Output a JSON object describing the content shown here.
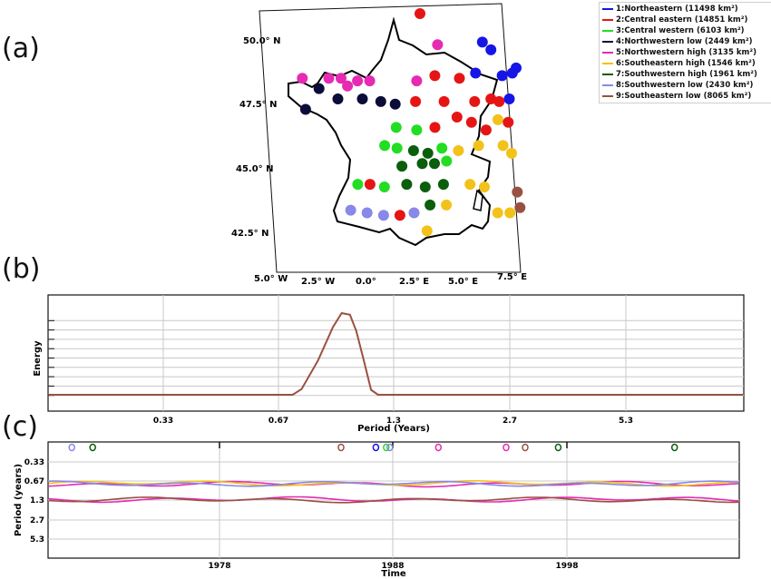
{
  "panels": {
    "a": "(a)",
    "b": "(b)",
    "c": "(c)"
  },
  "legend": [
    {
      "label": "1:Northeastern (11498 km²)",
      "color": "#1515e6"
    },
    {
      "label": "2:Central eastern (14851 km²)",
      "color": "#e61515"
    },
    {
      "label": "3:Central western (6103 km²)",
      "color": "#22dd22"
    },
    {
      "label": "4:Northwestern low (2449 km²)",
      "color": "#0c0c3a"
    },
    {
      "label": "5:Northwestern high (3135 km²)",
      "color": "#e62ab4"
    },
    {
      "label": "6:Southeastern high (1546 km²)",
      "color": "#f2c21a"
    },
    {
      "label": "7:Southwestern high (1961 km²)",
      "color": "#0b5e0b"
    },
    {
      "label": "8:Southwestern low (2430 km²)",
      "color": "#8888e8"
    },
    {
      "label": "9:Southeastern low (8065 km²)",
      "color": "#9a5040"
    }
  ],
  "chart_data": [
    {
      "type": "scatter",
      "panel": "a",
      "description_kind": "map",
      "lat_ticks": [
        "50.0° N",
        "47.5° N",
        "45.0° N",
        "42.5° N"
      ],
      "lon_ticks": [
        "5.0° W",
        "2.5° W",
        "0.0°",
        "2.5° E",
        "5.0° E",
        "7.5° E"
      ],
      "points": [
        {
          "lon": 2.4,
          "lat": 51.0,
          "region": 2
        },
        {
          "lon": 3.2,
          "lat": 49.8,
          "region": 5
        },
        {
          "lon": 5.4,
          "lat": 49.9,
          "region": 1
        },
        {
          "lon": 5.8,
          "lat": 49.6,
          "region": 1
        },
        {
          "lon": 7.0,
          "lat": 48.9,
          "region": 1
        },
        {
          "lon": 6.3,
          "lat": 48.6,
          "region": 1
        },
        {
          "lon": 6.8,
          "lat": 48.7,
          "region": 1
        },
        {
          "lon": 5.0,
          "lat": 48.7,
          "region": 1
        },
        {
          "lon": 4.2,
          "lat": 48.5,
          "region": 2
        },
        {
          "lon": 3.0,
          "lat": 48.6,
          "region": 2
        },
        {
          "lon": 2.1,
          "lat": 48.4,
          "region": 5
        },
        {
          "lon": -3.5,
          "lat": 48.5,
          "region": 5
        },
        {
          "lon": -2.2,
          "lat": 48.5,
          "region": 5
        },
        {
          "lon": -1.6,
          "lat": 48.5,
          "region": 5
        },
        {
          "lon": -0.8,
          "lat": 48.4,
          "region": 5
        },
        {
          "lon": -0.2,
          "lat": 48.4,
          "region": 5
        },
        {
          "lon": -1.3,
          "lat": 48.2,
          "region": 5
        },
        {
          "lon": -2.7,
          "lat": 48.1,
          "region": 4
        },
        {
          "lon": -1.8,
          "lat": 47.7,
          "region": 4
        },
        {
          "lon": -0.6,
          "lat": 47.7,
          "region": 4
        },
        {
          "lon": 0.3,
          "lat": 47.6,
          "region": 4
        },
        {
          "lon": 1.0,
          "lat": 47.5,
          "region": 4
        },
        {
          "lon": -3.4,
          "lat": 47.3,
          "region": 4
        },
        {
          "lon": 2.0,
          "lat": 47.6,
          "region": 2
        },
        {
          "lon": 3.4,
          "lat": 47.6,
          "region": 2
        },
        {
          "lon": 4.9,
          "lat": 47.6,
          "region": 2
        },
        {
          "lon": 5.7,
          "lat": 47.7,
          "region": 2
        },
        {
          "lon": 6.1,
          "lat": 47.6,
          "region": 2
        },
        {
          "lon": 6.6,
          "lat": 47.7,
          "region": 1
        },
        {
          "lon": 4.0,
          "lat": 47.0,
          "region": 2
        },
        {
          "lon": 4.7,
          "lat": 46.8,
          "region": 2
        },
        {
          "lon": 6.0,
          "lat": 46.9,
          "region": 6
        },
        {
          "lon": 6.5,
          "lat": 46.8,
          "region": 2
        },
        {
          "lon": 5.4,
          "lat": 46.5,
          "region": 2
        },
        {
          "lon": 1.0,
          "lat": 46.6,
          "region": 3
        },
        {
          "lon": 2.0,
          "lat": 46.5,
          "region": 3
        },
        {
          "lon": 2.9,
          "lat": 46.6,
          "region": 2
        },
        {
          "lon": 0.4,
          "lat": 45.9,
          "region": 3
        },
        {
          "lon": 1.0,
          "lat": 45.8,
          "region": 3
        },
        {
          "lon": 1.8,
          "lat": 45.7,
          "region": 7
        },
        {
          "lon": 2.5,
          "lat": 45.6,
          "region": 7
        },
        {
          "lon": 3.2,
          "lat": 45.8,
          "region": 3
        },
        {
          "lon": 4.0,
          "lat": 45.7,
          "region": 6
        },
        {
          "lon": 5.0,
          "lat": 45.9,
          "region": 6
        },
        {
          "lon": 6.2,
          "lat": 45.9,
          "region": 6
        },
        {
          "lon": 6.6,
          "lat": 45.6,
          "region": 6
        },
        {
          "lon": 2.2,
          "lat": 45.2,
          "region": 7
        },
        {
          "lon": 2.8,
          "lat": 45.2,
          "region": 7
        },
        {
          "lon": 3.4,
          "lat": 45.3,
          "region": 3
        },
        {
          "lon": 1.2,
          "lat": 45.1,
          "region": 7
        },
        {
          "lon": -1.0,
          "lat": 44.4,
          "region": 3
        },
        {
          "lon": -0.4,
          "lat": 44.4,
          "region": 2
        },
        {
          "lon": 0.3,
          "lat": 44.3,
          "region": 3
        },
        {
          "lon": 1.4,
          "lat": 44.4,
          "region": 7
        },
        {
          "lon": 2.3,
          "lat": 44.3,
          "region": 7
        },
        {
          "lon": 3.2,
          "lat": 44.4,
          "region": 7
        },
        {
          "lon": 4.5,
          "lat": 44.4,
          "region": 6
        },
        {
          "lon": 5.2,
          "lat": 44.3,
          "region": 6
        },
        {
          "lon": 6.8,
          "lat": 44.1,
          "region": 9
        },
        {
          "lon": 2.5,
          "lat": 43.6,
          "region": 7
        },
        {
          "lon": 3.3,
          "lat": 43.6,
          "region": 6
        },
        {
          "lon": 6.9,
          "lat": 43.5,
          "region": 9
        },
        {
          "lon": 5.8,
          "lat": 43.3,
          "region": 6
        },
        {
          "lon": 6.4,
          "lat": 43.3,
          "region": 6
        },
        {
          "lon": -1.4,
          "lat": 43.4,
          "region": 8
        },
        {
          "lon": -0.6,
          "lat": 43.3,
          "region": 8
        },
        {
          "lon": 0.2,
          "lat": 43.2,
          "region": 8
        },
        {
          "lon": 1.0,
          "lat": 43.2,
          "region": 2
        },
        {
          "lon": 1.7,
          "lat": 43.3,
          "region": 8
        },
        {
          "lon": 2.3,
          "lat": 42.6,
          "region": 6
        }
      ]
    },
    {
      "type": "line",
      "panel": "b",
      "xlabel": "Period (Years)",
      "ylabel": "Energy",
      "x_tick_labels": [
        "0.33",
        "0.67",
        "1.3",
        "2.7",
        "5.3"
      ],
      "series_color": "#9a5040",
      "x_period": [
        0.0,
        0.73,
        0.77,
        0.85,
        0.93,
        0.98,
        1.03,
        1.07,
        1.12,
        1.17,
        1.22,
        5.3
      ],
      "energy": [
        0,
        0,
        0.07,
        0.42,
        0.83,
        1.0,
        0.98,
        0.78,
        0.42,
        0.06,
        0,
        0
      ]
    },
    {
      "type": "line",
      "panel": "c",
      "xlabel": "Time",
      "ylabel": "Period (years)",
      "x_tick_labels": [
        "1978",
        "1988",
        "1998"
      ],
      "y_tick_labels": [
        "0.33",
        "0.67",
        "1.3",
        "2.7",
        "5.3"
      ],
      "series": [
        {
          "period": 0.75,
          "color": "#e62ab4"
        },
        {
          "period": 0.73,
          "color": "#f2c21a"
        },
        {
          "period": 0.74,
          "color": "#8888e8"
        },
        {
          "period": 1.3,
          "color": "#e62ab4"
        },
        {
          "period": 1.32,
          "color": "#9a5040"
        }
      ],
      "small_contours": [
        {
          "year": 1969.5,
          "period": 0.2,
          "color": "#8888e8"
        },
        {
          "year": 1970.7,
          "period": 0.2,
          "color": "#0b5e0b"
        },
        {
          "year": 1985.0,
          "period": 0.2,
          "color": "#9a5040"
        },
        {
          "year": 1987.0,
          "period": 0.2,
          "color": "#1515e6"
        },
        {
          "year": 1987.6,
          "period": 0.2,
          "color": "#22dd22"
        },
        {
          "year": 1987.8,
          "period": 0.2,
          "color": "#8888e8"
        },
        {
          "year": 1990.6,
          "period": 0.2,
          "color": "#e62ab4"
        },
        {
          "year": 1994.5,
          "period": 0.2,
          "color": "#e62ab4"
        },
        {
          "year": 1995.6,
          "period": 0.2,
          "color": "#9a5040"
        },
        {
          "year": 1997.5,
          "period": 0.2,
          "color": "#0b5e0b"
        },
        {
          "year": 2004.2,
          "period": 0.2,
          "color": "#0b5e0b"
        }
      ]
    }
  ]
}
